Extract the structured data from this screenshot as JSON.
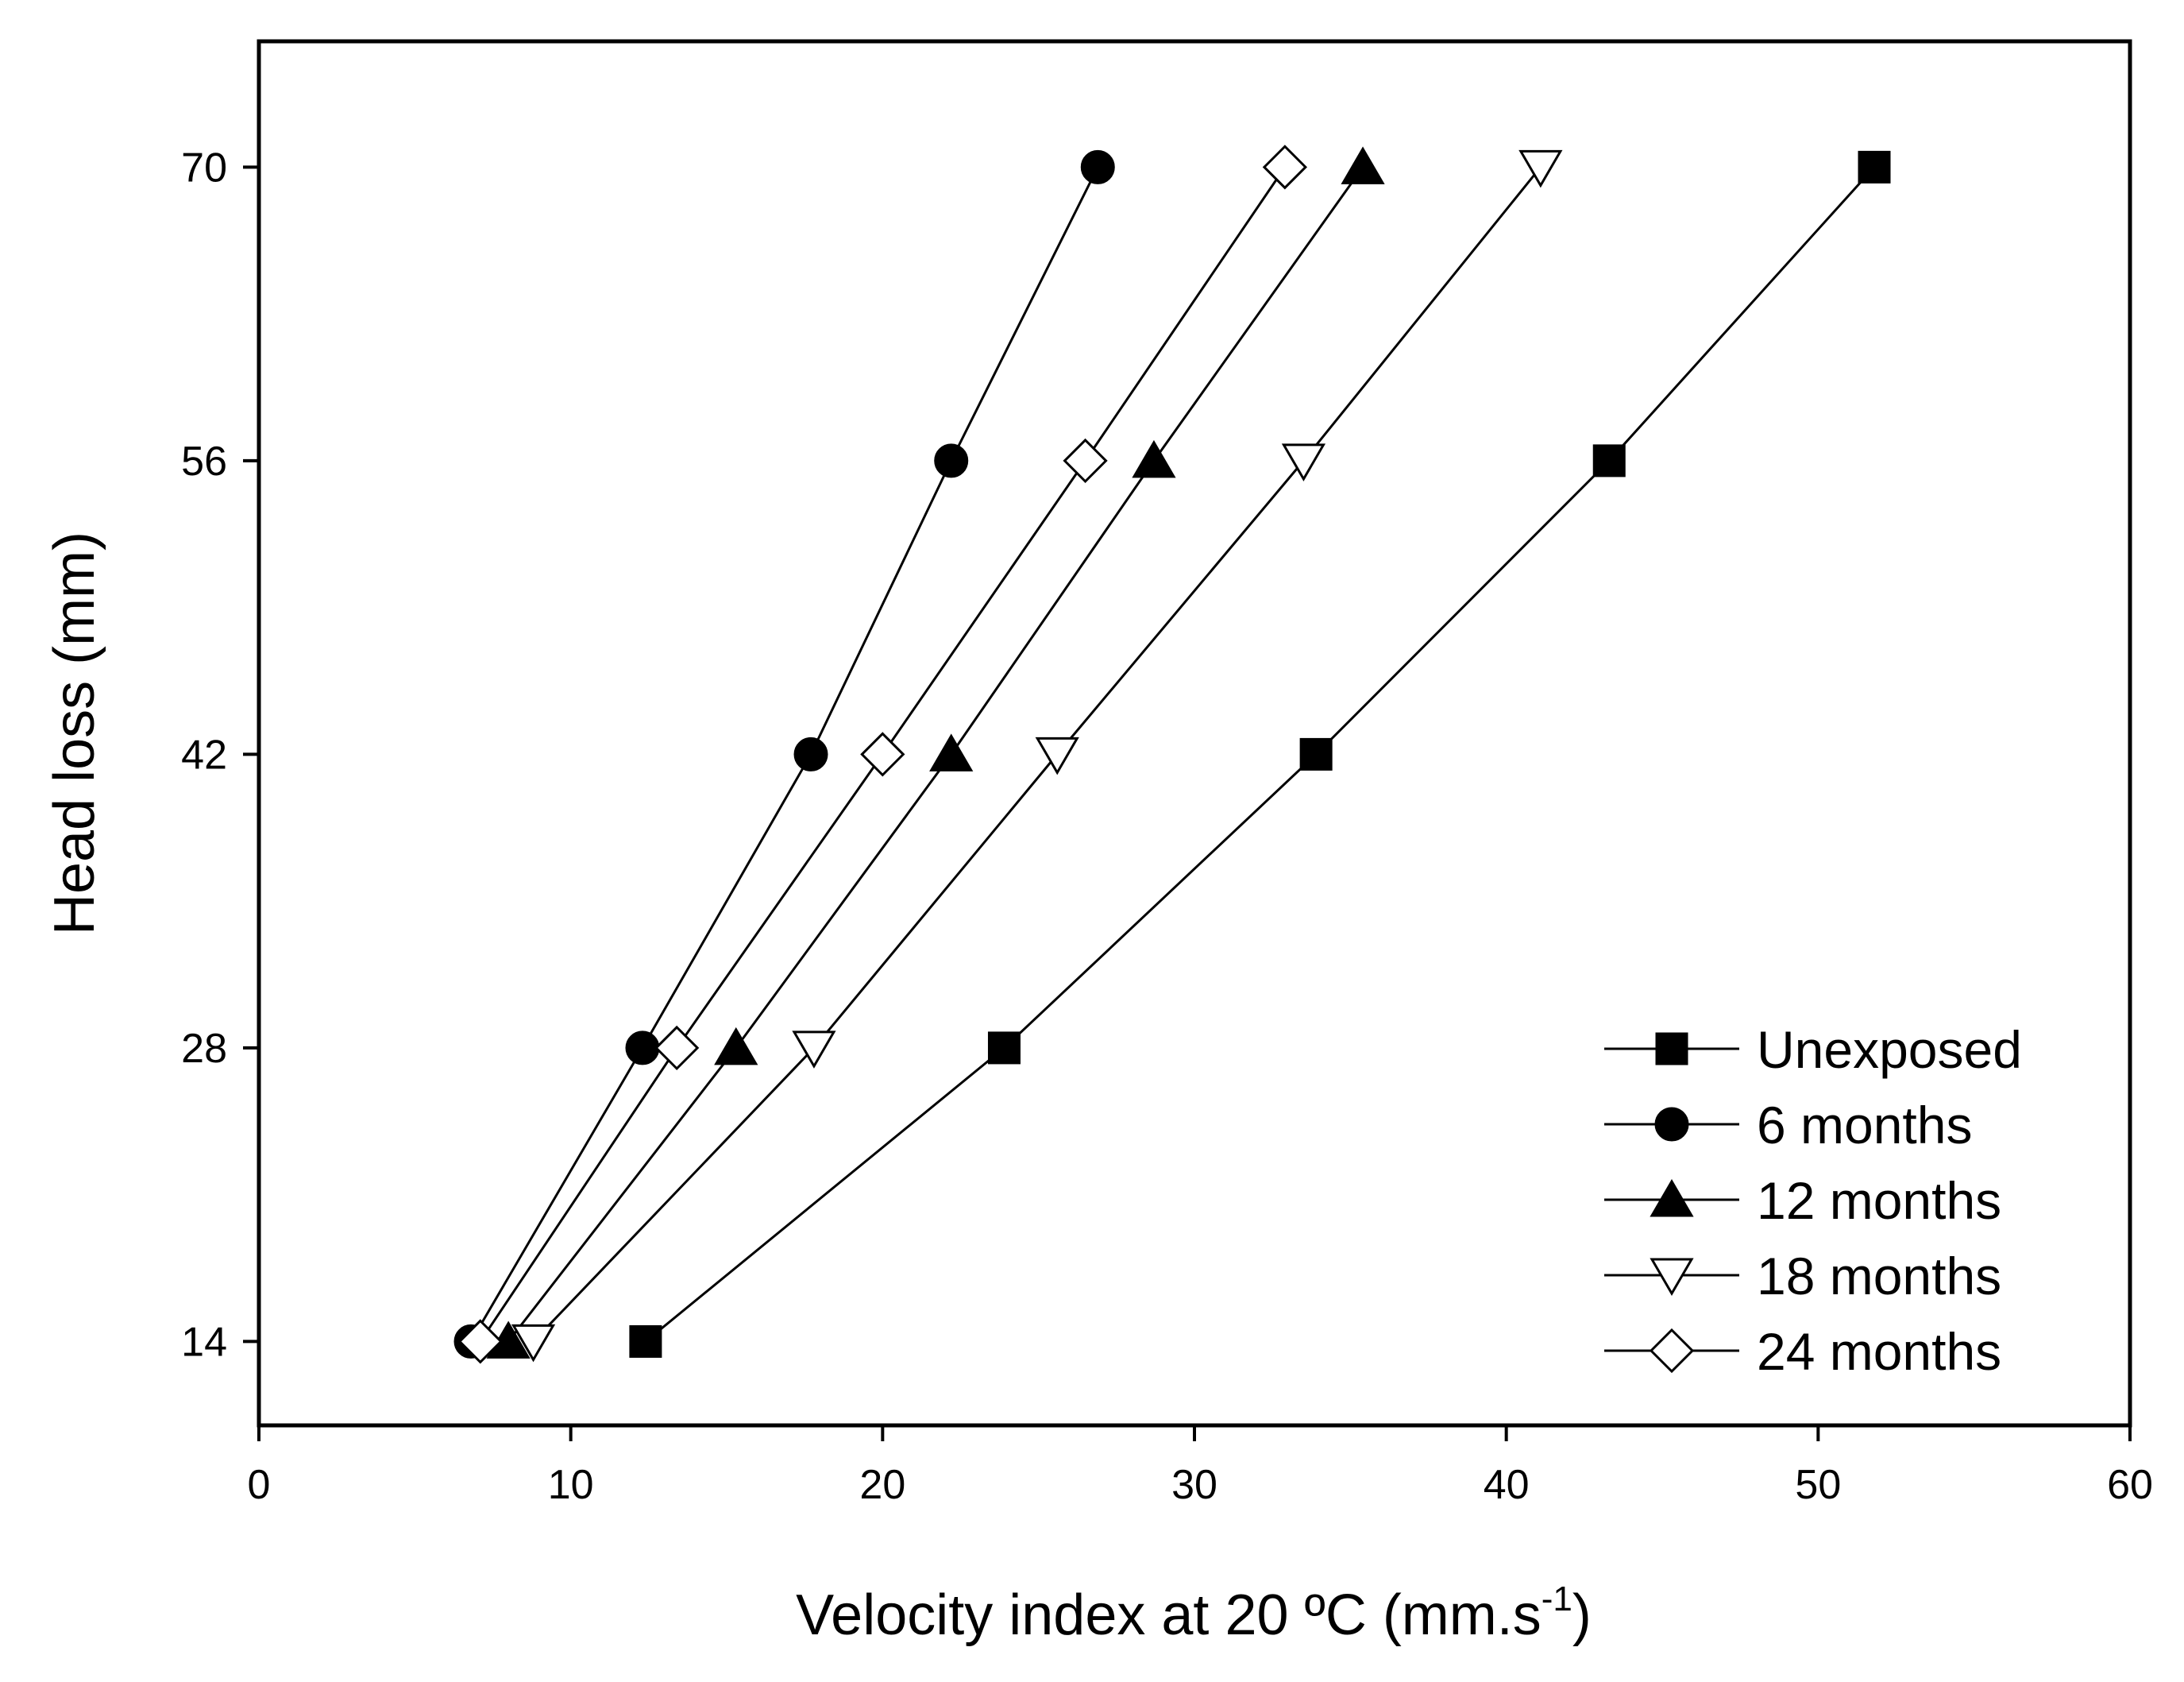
{
  "chart_data": {
    "type": "line",
    "title": "",
    "xlabel": "Velocity index at 20 ºC (mm.s",
    "xlabel_superscript": "-1",
    "xlabel_suffix": ")",
    "ylabel": "Head loss (mm)",
    "xlim": [
      0,
      60
    ],
    "ylim": [
      10,
      76
    ],
    "x_ticks": [
      0,
      10,
      20,
      30,
      40,
      50,
      60
    ],
    "y_ticks": [
      14,
      28,
      42,
      56,
      70
    ],
    "grid": false,
    "legend_position": "bottom-right",
    "series": [
      {
        "name": "Unexposed",
        "marker": "square",
        "filled": true,
        "x": [
          12.4,
          23.9,
          33.9,
          43.3,
          51.8
        ],
        "y": [
          14,
          28,
          42,
          56,
          70
        ]
      },
      {
        "name": "6 months",
        "marker": "circle",
        "filled": true,
        "x": [
          6.8,
          12.3,
          17.7,
          22.2,
          26.9
        ],
        "y": [
          14,
          28,
          42,
          56,
          70
        ]
      },
      {
        "name": "12 months",
        "marker": "triangle-up",
        "filled": true,
        "x": [
          8.0,
          15.3,
          22.2,
          28.7,
          35.4
        ],
        "y": [
          14,
          28,
          42,
          56,
          70
        ]
      },
      {
        "name": "18 months",
        "marker": "triangle-down",
        "filled": false,
        "x": [
          8.8,
          17.8,
          25.6,
          33.5,
          41.1
        ],
        "y": [
          14,
          28,
          42,
          56,
          70
        ]
      },
      {
        "name": "24 months",
        "marker": "diamond",
        "filled": false,
        "x": [
          7.1,
          13.4,
          20.0,
          26.5,
          32.9
        ],
        "y": [
          14,
          28,
          42,
          56,
          70
        ]
      }
    ]
  }
}
